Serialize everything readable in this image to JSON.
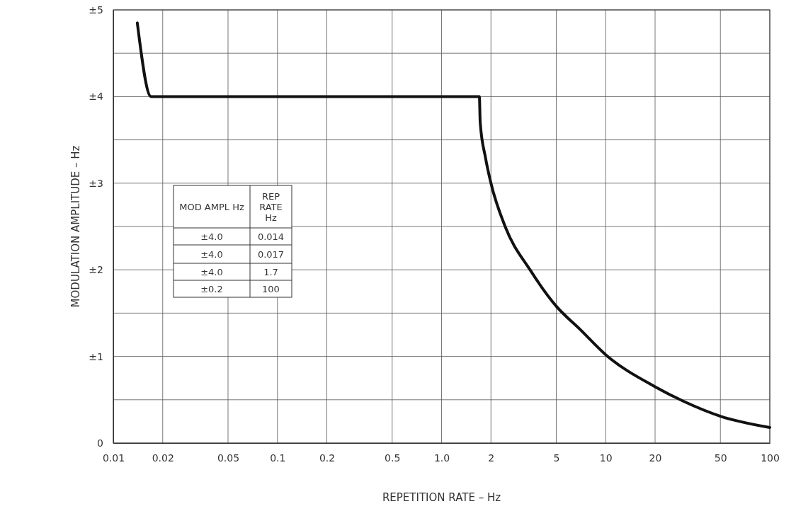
{
  "chart_data": {
    "type": "line",
    "xlabel": "REPETITION RATE – Hz",
    "ylabel": "MODULATION AMPLITUDE – Hz",
    "log": "x",
    "grid": true,
    "line_style": "solid",
    "marker": "none",
    "xlim": [
      0.01,
      100
    ],
    "xticks": [
      0.01,
      0.02,
      0.05,
      {
        "value": 0.1,
        "label": "0.1"
      },
      0.2,
      0.5,
      {
        "value": 1,
        "label": "1.0"
      },
      2,
      5,
      10,
      20,
      50,
      100
    ],
    "ylim": [
      0,
      5
    ],
    "yticks": [
      0,
      {
        "value": 0.5,
        "label": null
      },
      {
        "value": 1,
        "label": "±1"
      },
      {
        "value": 1.5,
        "label": null
      },
      {
        "value": 2,
        "label": "±2"
      },
      {
        "value": 2.5,
        "label": null
      },
      {
        "value": 3,
        "label": "±3"
      },
      {
        "value": 3.5,
        "label": null
      },
      {
        "value": 4,
        "label": "±4"
      },
      {
        "value": 4.5,
        "label": null
      },
      {
        "value": 5,
        "label": "±5"
      }
    ],
    "series": [
      {
        "color": "#111111",
        "x": [
          0.014,
          0.017,
          1.7,
          1.72,
          1.85,
          2,
          2.44,
          3.46,
          5,
          7,
          10,
          20,
          30,
          50,
          100
        ],
        "values": [
          4.85,
          4.0,
          4.0,
          3.7,
          3.3,
          3.0,
          2.5,
          2.0,
          1.58,
          1.31,
          1.02,
          0.65,
          0.48,
          0.31,
          0.18
        ]
      }
    ],
    "annotations": [
      "MOD AMPL Hz",
      "REP RATE Hz",
      "±4.0",
      "0.014",
      "±4.0",
      "0.017",
      "±4.0",
      "1.7",
      "±0.2",
      "100"
    ]
  }
}
